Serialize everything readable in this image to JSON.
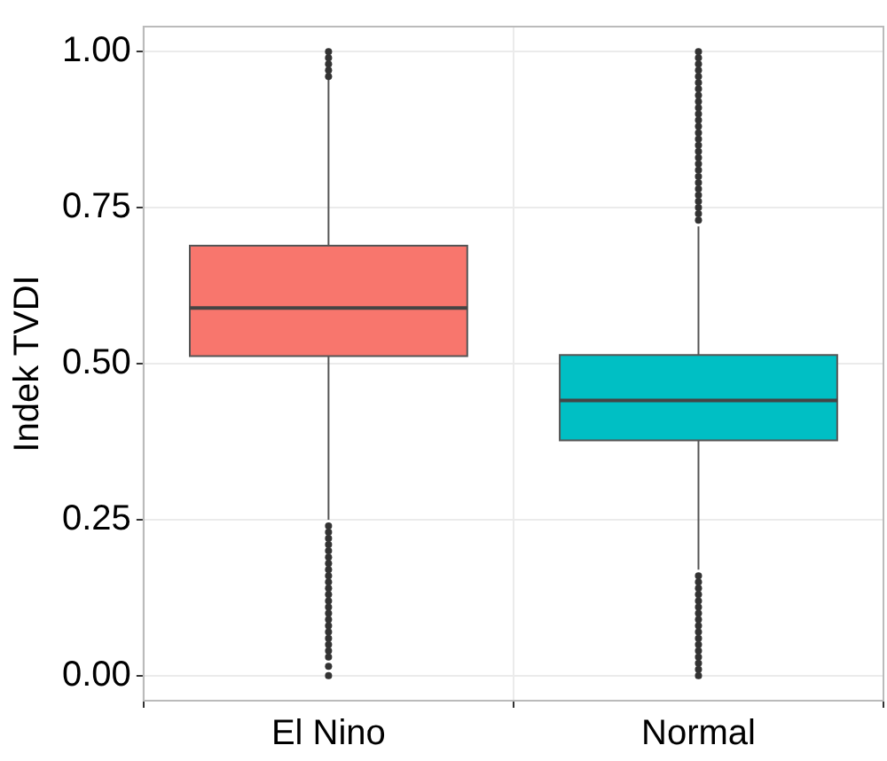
{
  "chart_data": {
    "type": "box",
    "ylabel": "Indek TVDI",
    "categories": [
      "El Nino",
      "Normal"
    ],
    "colors": [
      "#f8766d",
      "#00bfc4"
    ],
    "boxes": [
      {
        "low": 0.25,
        "q1": 0.512,
        "median": 0.589,
        "q3": 0.689,
        "high": 0.955,
        "outliers": [
          0.96,
          0.97,
          0.98,
          0.99,
          1.0,
          0.24,
          0.23,
          0.22,
          0.21,
          0.2,
          0.19,
          0.18,
          0.17,
          0.16,
          0.15,
          0.14,
          0.13,
          0.12,
          0.11,
          0.1,
          0.09,
          0.08,
          0.07,
          0.06,
          0.05,
          0.04,
          0.03,
          0.015,
          0.0
        ]
      },
      {
        "low": 0.17,
        "q1": 0.377,
        "median": 0.441,
        "q3": 0.514,
        "high": 0.72,
        "outliers": [
          0.73,
          0.74,
          0.75,
          0.76,
          0.77,
          0.78,
          0.79,
          0.8,
          0.81,
          0.82,
          0.83,
          0.84,
          0.85,
          0.86,
          0.87,
          0.88,
          0.89,
          0.9,
          0.91,
          0.92,
          0.93,
          0.94,
          0.95,
          0.96,
          0.97,
          0.98,
          0.99,
          1.0,
          0.16,
          0.15,
          0.14,
          0.13,
          0.12,
          0.11,
          0.1,
          0.09,
          0.08,
          0.07,
          0.06,
          0.05,
          0.04,
          0.03,
          0.02,
          0.01,
          0.0
        ]
      }
    ],
    "ylim": [
      -0.04,
      1.04
    ],
    "yticks": [
      {
        "value": 0,
        "label": "0.00"
      },
      {
        "value": 0.25,
        "label": "0.25"
      },
      {
        "value": 0.5,
        "label": "0.50"
      },
      {
        "value": 0.75,
        "label": "0.75"
      },
      {
        "value": 1,
        "label": "1.00"
      }
    ],
    "grid": true
  }
}
